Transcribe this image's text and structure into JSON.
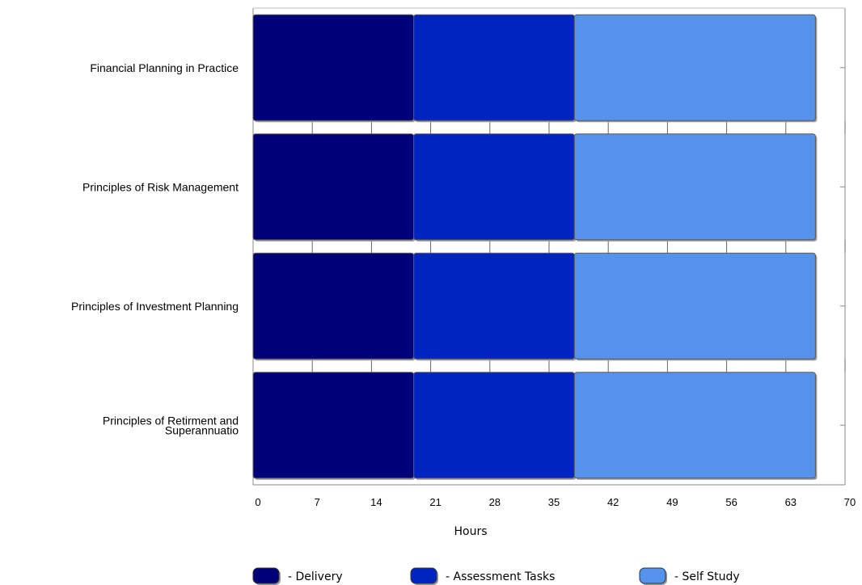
{
  "chart_data": {
    "type": "bar",
    "orientation": "horizontal",
    "stacked": true,
    "categories": [
      "Financial Planning in Practice",
      "Principles of Risk Management",
      "Principles of Investment Planning",
      [
        "Principles of Retirment and",
        "Superannuatio"
      ]
    ],
    "series": [
      {
        "name": "Delivery",
        "values": [
          19,
          19,
          19,
          19
        ],
        "color": "#000078"
      },
      {
        "name": "Assessment Tasks",
        "values": [
          19,
          19,
          19,
          19
        ],
        "color": "#0024C0"
      },
      {
        "name": "Self Study",
        "values": [
          28.5,
          28.5,
          28.5,
          28.5
        ],
        "color": "#5592EB"
      }
    ],
    "xlabel": "Hours",
    "xlim": [
      0,
      70
    ],
    "xticks": [
      0,
      7,
      14,
      21,
      28,
      35,
      42,
      49,
      56,
      63,
      70
    ],
    "legend_labels": [
      "- Delivery",
      "- Assessment Tasks",
      "- Self Study"
    ],
    "legend_position": "bottom",
    "grid": false
  }
}
